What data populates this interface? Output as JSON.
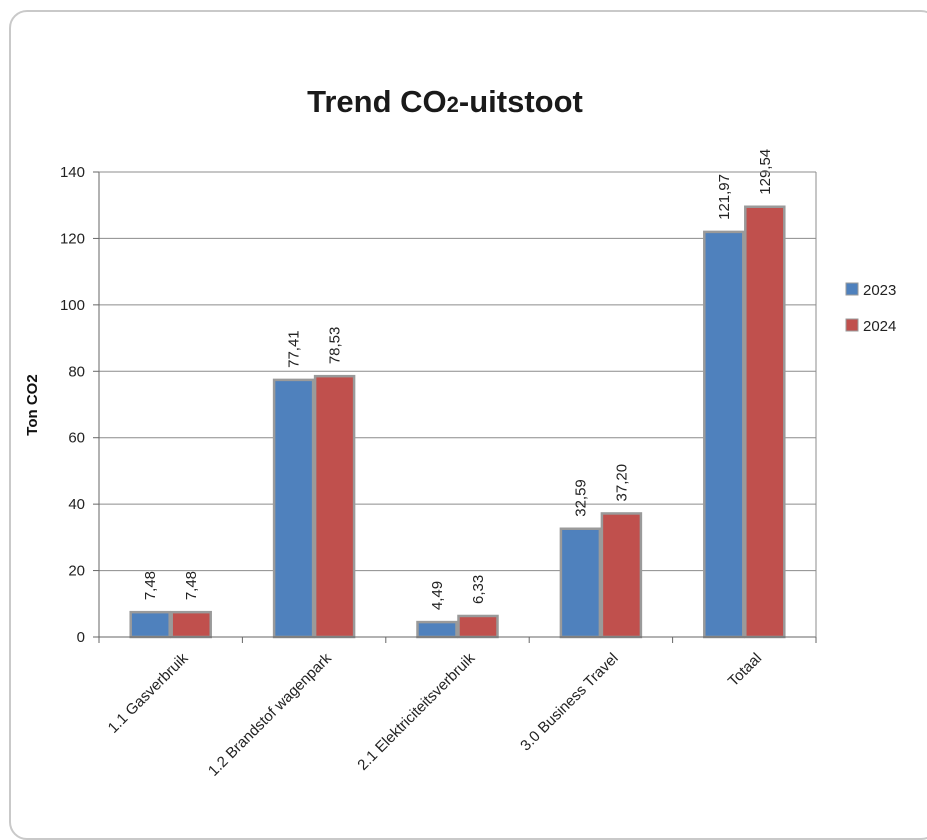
{
  "chart_data": {
    "type": "bar",
    "title_main": "Trend CO",
    "title_sub": "2",
    "title_rest": "-uitstoot",
    "ylabel": "Ton CO2",
    "xlabel": "",
    "ylim": [
      0,
      140
    ],
    "yticks": [
      0,
      20,
      40,
      60,
      80,
      100,
      120,
      140
    ],
    "grid": true,
    "legend_position": "right",
    "categories": [
      "1.1 Gasverbruik",
      "1.2 Brandstof wagenpark",
      "2.1 Elektriciteitsverbruik",
      "3.0 Business Travel",
      "Totaal"
    ],
    "series": [
      {
        "name": "2023",
        "color": "#4f81bd",
        "values": [
          7.48,
          77.41,
          4.49,
          32.59,
          121.97
        ],
        "labels": [
          "7,48",
          "77,41",
          "4,49",
          "32,59",
          "121,97"
        ]
      },
      {
        "name": "2024",
        "color": "#c0504d",
        "values": [
          7.48,
          78.53,
          6.33,
          37.2,
          129.54
        ],
        "labels": [
          "7,48",
          "78,53",
          "6,33",
          "37,20",
          "129,54"
        ]
      }
    ]
  }
}
